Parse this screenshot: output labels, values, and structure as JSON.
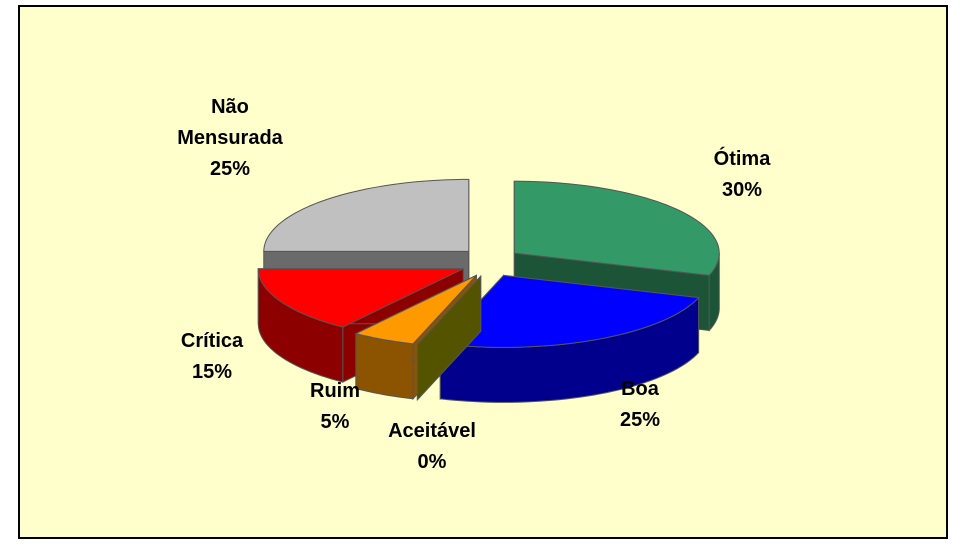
{
  "chart_data": {
    "type": "pie3d",
    "categories": [
      "Ótima",
      "Boa",
      "Aceitável",
      "Ruim",
      "Crítica",
      "Não Mensurada"
    ],
    "values": [
      30,
      25,
      0,
      5,
      15,
      25
    ],
    "value_labels": [
      "30%",
      "25%",
      "0%",
      "5%",
      "15%",
      "25%"
    ],
    "colors": [
      "#339966",
      "#0000ff",
      "#999900",
      "#ff9900",
      "#ff0000",
      "#c0c0c0"
    ]
  }
}
